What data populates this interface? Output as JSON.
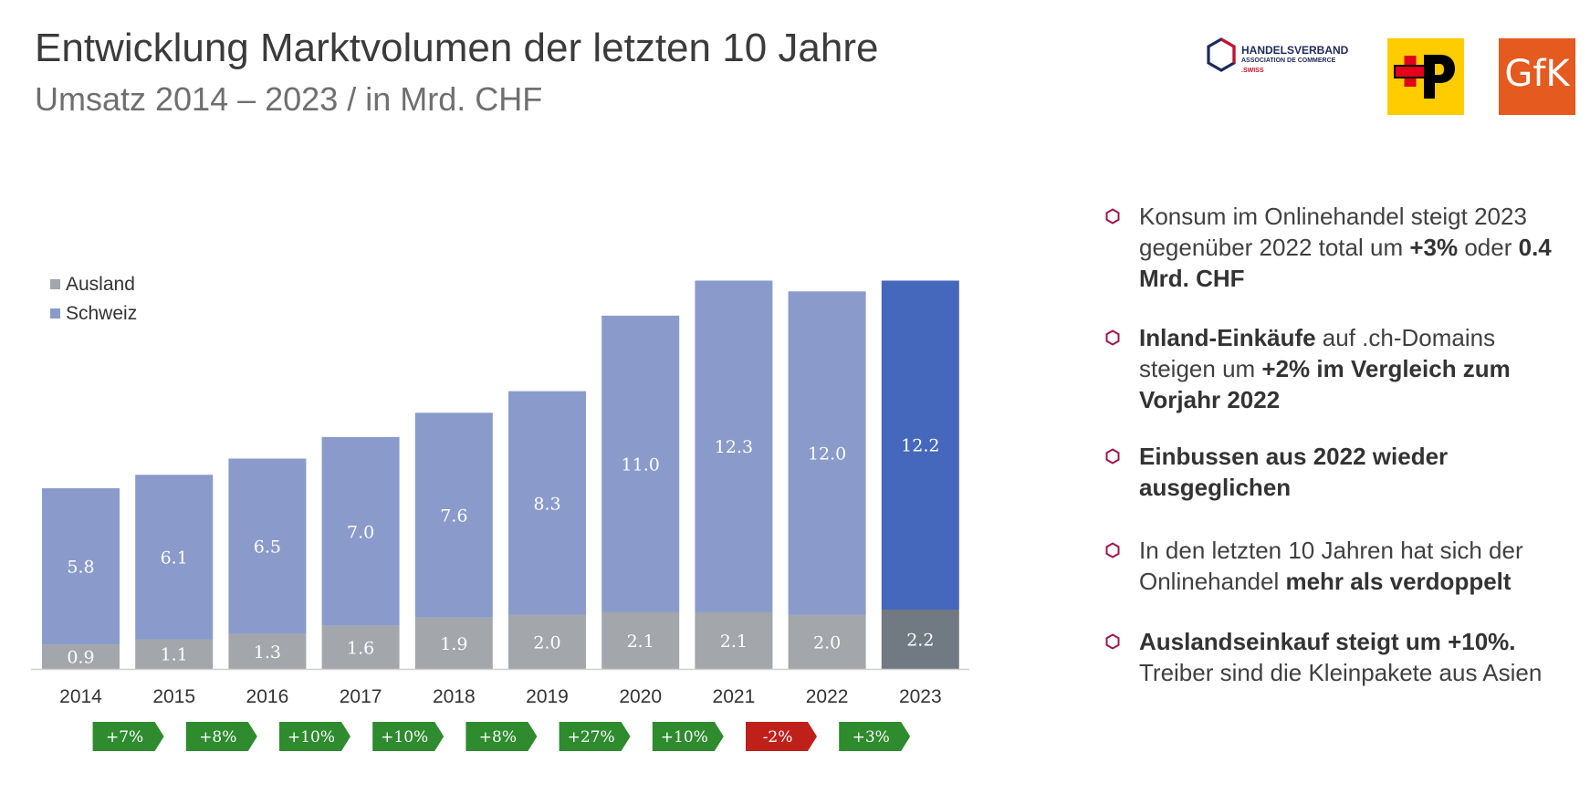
{
  "title": "Entwicklung Marktvolumen der letzten 10 Jahre",
  "subtitle": "Umsatz 2014 – 2023 / in Mrd. CHF",
  "logos": {
    "handelsverband_line1": "HANDELSVERBAND",
    "handelsverband_line2": "ASSOCIATION DE COMMERCE",
    "handelsverband_line3": ".SWISS",
    "gfk": "GfK"
  },
  "colors": {
    "schweiz": "#8A9BCB",
    "ausland": "#A3A6AA",
    "schweiz_highlight": "#4668BC",
    "ausland_highlight": "#717982",
    "growth_positive": "#2E8B2E",
    "growth_negative": "#C0201A",
    "bullet_hex": "#A0174A"
  },
  "chart_data": {
    "type": "bar",
    "stacked": true,
    "categories": [
      "2014",
      "2015",
      "2016",
      "2017",
      "2018",
      "2019",
      "2020",
      "2021",
      "2022",
      "2023"
    ],
    "series": [
      {
        "name": "Ausland",
        "values": [
          0.9,
          1.1,
          1.3,
          1.6,
          1.9,
          2.0,
          2.1,
          2.1,
          2.0,
          2.2
        ]
      },
      {
        "name": "Schweiz",
        "values": [
          5.8,
          6.1,
          6.5,
          7.0,
          7.6,
          8.3,
          11.0,
          12.3,
          12.0,
          12.2
        ]
      }
    ],
    "data_labels": {
      "Ausland": [
        "0.9",
        "1.1",
        "1.3",
        "1.6",
        "1.9",
        "2.0",
        "2.1",
        "2.1",
        "2.0",
        "2.2"
      ],
      "Schweiz": [
        "5.8",
        "6.1",
        "6.5",
        "7.0",
        "7.6",
        "8.3",
        "11.0",
        "12.3",
        "12.0",
        "12.2"
      ]
    },
    "legend": {
      "position": "top-left",
      "entries": [
        "Ausland",
        "Schweiz"
      ]
    },
    "growth": [
      "+7%",
      "+8%",
      "+10%",
      "+10%",
      "+8%",
      "+27%",
      "+10%",
      "-2%",
      "+3%"
    ],
    "growth_values": [
      7,
      8,
      10,
      10,
      8,
      27,
      10,
      -2,
      3
    ],
    "grid": false,
    "highlight_category": "2023"
  },
  "bullets": [
    {
      "parts": [
        {
          "t": "Konsum im Onlinehandel steigt 2023 gegenüber 2022 total um ",
          "b": false
        },
        {
          "t": "+3%",
          "b": true
        },
        {
          "t": " oder ",
          "b": false
        },
        {
          "t": "0.4 Mrd. CHF",
          "b": true
        }
      ]
    },
    {
      "parts": [
        {
          "t": "Inland-Einkäufe",
          "b": true
        },
        {
          "t": " auf .ch-Domains steigen um ",
          "b": false
        },
        {
          "t": "+2% im Vergleich zum Vorjahr 2022",
          "b": true
        }
      ]
    },
    {
      "parts": [
        {
          "t": " Einbussen aus 2022 wieder ausgeglichen",
          "b": true
        }
      ]
    },
    {
      "parts": [
        {
          "t": "In den letzten 10 Jahren hat sich der Onlinehandel ",
          "b": false
        },
        {
          "t": "mehr als verdoppelt",
          "b": true
        }
      ]
    },
    {
      "parts": [
        {
          "t": "Auslandseinkauf steigt um +10%.",
          "b": true
        },
        {
          "t": " Treiber sind die Kleinpakete aus Asien",
          "b": false
        }
      ]
    }
  ]
}
